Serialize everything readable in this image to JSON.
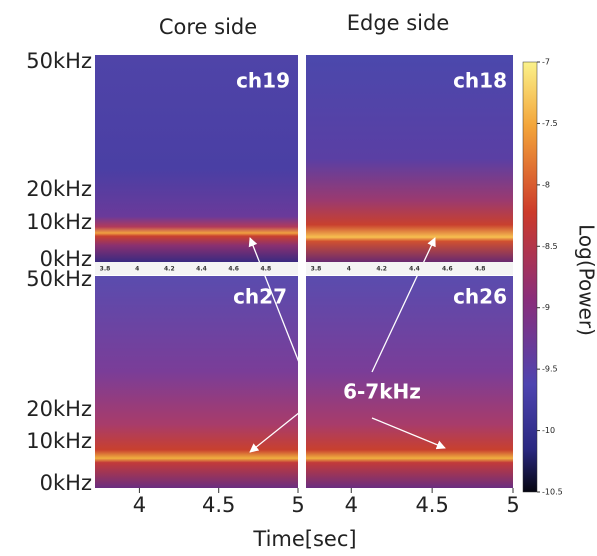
{
  "column_titles": [
    "Core side",
    "Edge side"
  ],
  "panels": [
    {
      "label": "ch19"
    },
    {
      "label": "ch18"
    },
    {
      "label": "ch27"
    },
    {
      "label": "ch26"
    }
  ],
  "y_tick_labels": [
    "50kHz",
    "20kHz",
    "10kHz",
    "0kHz"
  ],
  "inset_tick_labels": [
    "3.8",
    "4",
    "4.2",
    "4.4",
    "4.6",
    "4.8"
  ],
  "x_axis": {
    "label": "Time[sec]",
    "lim": [
      3.72,
      5
    ],
    "ticks": [
      4,
      4.5,
      5
    ]
  },
  "colorbar": {
    "label": "Log(Power)",
    "lim": [
      -10.5,
      -7
    ],
    "ticks": [
      -7,
      -7.5,
      -8,
      -8.5,
      -9,
      -9.5,
      -10,
      -10.5
    ]
  },
  "annotation": "6-7kHz"
}
